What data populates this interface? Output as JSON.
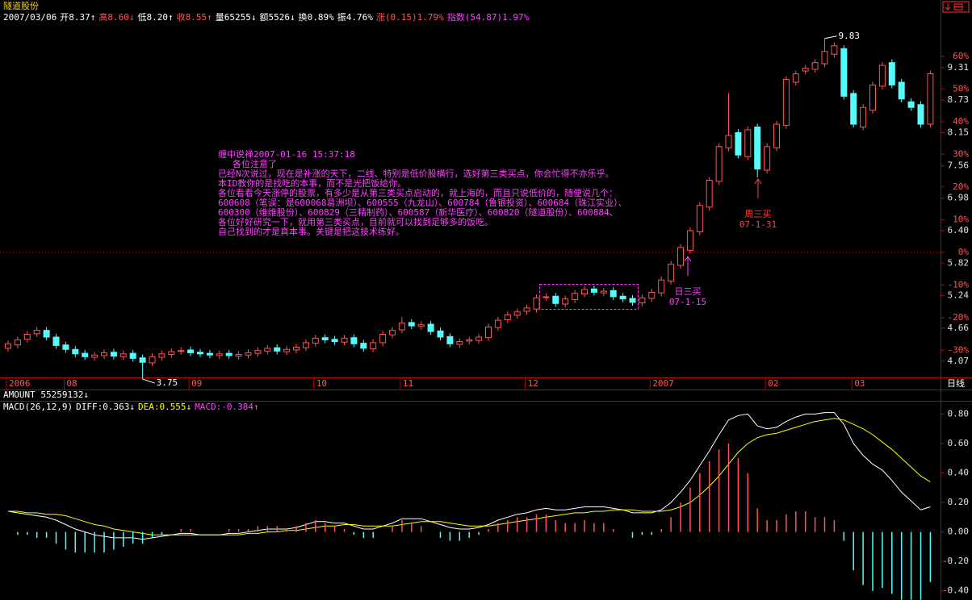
{
  "header": {
    "date": "2007/03/06",
    "quote": [
      {
        "text": "开8.37↑",
        "color": "#ffffff"
      },
      {
        "text": "高8.60↓",
        "color": "#ff5454"
      },
      {
        "text": "低8.20↑",
        "color": "#ffffff"
      },
      {
        "text": "收8.55↑",
        "color": "#ff5454"
      },
      {
        "text": "量65255↓",
        "color": "#ffffff"
      },
      {
        "text": "额5526↓",
        "color": "#ffffff"
      },
      {
        "text": "换0.89%",
        "color": "#ffffff"
      },
      {
        "text": "振4.76%",
        "color": "#ffffff"
      },
      {
        "text": "涨(0.15)1.79%",
        "color": "#ff5454"
      },
      {
        "text": "指数(54.87)1.97%",
        "color": "#ff40ff"
      }
    ]
  },
  "note": {
    "author": "缠中说禅2007-01-16 15:37:18",
    "greeting": "各位注意了",
    "lines": [
      "已经N次说过，现在是补涨的天下，二线、特别是低价股横行，选好第三类买点，你会忙得不亦乐乎。",
      "本ID教你的是找吃的本事，而不是光把饭给你。",
      "各位看看今天涨停的股票，有多少是从第三类买点启动的，就上海的，而且只说低价的，随便说几个：",
      "600608（笔误：是600068葛洲坝）、600555（九龙山）、600784（鲁银投资）、600684（珠江实业）、",
      "600300（维维股份）、600829（三精制药）、600587（新华医疗）、600820（隧道股份）、600884、",
      "各位好好研究一下，就用第三类买点，目前就可以找到足够多的饭吃。",
      "自己找到的才是真本事。关键是把这技术练好。"
    ]
  },
  "chart_data": [
    {
      "type": "candlestick",
      "title": "隧道股份",
      "period": "日线",
      "categories": [
        "2006",
        null,
        null,
        null,
        null,
        null,
        "08",
        null,
        null,
        null,
        null,
        null,
        null,
        null,
        null,
        null,
        null,
        null,
        null,
        "09",
        null,
        null,
        null,
        null,
        null,
        null,
        null,
        null,
        null,
        null,
        null,
        null,
        "10",
        null,
        null,
        null,
        null,
        null,
        null,
        null,
        null,
        "11",
        null,
        null,
        null,
        null,
        null,
        null,
        null,
        null,
        null,
        null,
        null,
        null,
        "12",
        null,
        null,
        null,
        null,
        null,
        null,
        null,
        null,
        null,
        null,
        null,
        null,
        "2007",
        null,
        null,
        null,
        null,
        null,
        null,
        null,
        null,
        null,
        null,
        null,
        "02",
        null,
        null,
        null,
        null,
        null,
        null,
        null,
        null,
        "03",
        null,
        null,
        null,
        null,
        null,
        null,
        null,
        null
      ],
      "open": [
        4.3,
        4.36,
        4.46,
        4.56,
        4.62,
        4.5,
        4.36,
        4.28,
        4.21,
        4.14,
        4.17,
        4.23,
        4.15,
        4.21,
        4.13,
        4.04,
        4.14,
        4.19,
        4.25,
        4.27,
        4.23,
        4.21,
        4.17,
        4.21,
        4.16,
        4.18,
        4.21,
        4.25,
        4.31,
        4.24,
        4.27,
        4.31,
        4.39,
        4.49,
        4.46,
        4.41,
        4.49,
        4.39,
        4.29,
        4.4,
        4.54,
        4.63,
        4.76,
        4.69,
        4.73,
        4.61,
        4.51,
        4.37,
        4.43,
        4.44,
        4.49,
        4.67,
        4.81,
        4.89,
        4.96,
        5.0,
        5.21,
        5.23,
        5.09,
        5.17,
        5.27,
        5.36,
        5.29,
        5.33,
        5.23,
        5.19,
        5.11,
        5.19,
        5.29,
        5.5,
        5.78,
        6.05,
        6.38,
        6.82,
        7.28,
        7.88,
        8.15,
        7.72,
        8.25,
        7.48,
        7.88,
        8.28,
        9.05,
        9.25,
        9.28,
        9.38,
        9.55,
        9.65,
        8.85,
        8.25,
        8.55,
        8.98,
        9.4,
        9.05,
        8.7,
        8.65,
        8.3
      ],
      "high": [
        4.44,
        4.51,
        4.61,
        4.68,
        4.68,
        4.56,
        4.42,
        4.34,
        4.27,
        4.24,
        4.28,
        4.29,
        4.26,
        4.27,
        4.19,
        4.21,
        4.26,
        4.3,
        4.32,
        4.33,
        4.29,
        4.27,
        4.26,
        4.27,
        4.25,
        4.28,
        4.32,
        4.36,
        4.37,
        4.34,
        4.38,
        4.46,
        4.54,
        4.55,
        4.52,
        4.54,
        4.55,
        4.45,
        4.46,
        4.61,
        4.68,
        4.86,
        4.82,
        4.78,
        4.79,
        4.67,
        4.57,
        4.48,
        4.51,
        4.56,
        4.74,
        4.86,
        4.96,
        5.01,
        5.08,
        5.26,
        5.28,
        5.29,
        5.24,
        5.34,
        5.41,
        5.42,
        5.38,
        5.39,
        5.29,
        5.25,
        5.26,
        5.36,
        5.58,
        5.86,
        6.16,
        6.46,
        6.91,
        7.36,
        7.96,
        8.86,
        8.21,
        8.26,
        8.31,
        7.96,
        8.36,
        9.16,
        9.26,
        9.36,
        9.46,
        9.83,
        9.76,
        9.71,
        8.91,
        8.66,
        9.06,
        9.41,
        9.46,
        9.11,
        8.76,
        8.71,
        9.26
      ],
      "low": [
        4.24,
        4.3,
        4.4,
        4.5,
        4.44,
        4.29,
        4.22,
        4.14,
        4.09,
        4.08,
        4.11,
        4.1,
        4.09,
        4.06,
        3.75,
        3.98,
        4.08,
        4.13,
        4.19,
        4.16,
        4.14,
        4.12,
        4.11,
        4.11,
        4.1,
        4.12,
        4.15,
        4.19,
        4.19,
        4.18,
        4.21,
        4.25,
        4.33,
        4.39,
        4.36,
        4.35,
        4.32,
        4.24,
        4.23,
        4.34,
        4.48,
        4.57,
        4.64,
        4.63,
        4.54,
        4.44,
        4.32,
        4.31,
        4.37,
        4.38,
        4.43,
        4.61,
        4.75,
        4.83,
        4.9,
        4.94,
        5.15,
        5.04,
        5.03,
        5.11,
        5.21,
        5.24,
        5.23,
        5.16,
        5.12,
        5.06,
        5.05,
        5.13,
        5.23,
        5.44,
        5.72,
        5.99,
        6.32,
        6.76,
        7.22,
        7.82,
        7.69,
        7.66,
        7.35,
        7.42,
        7.82,
        8.22,
        8.99,
        9.19,
        9.22,
        9.32,
        9.49,
        8.74,
        8.24,
        8.19,
        8.49,
        8.92,
        8.94,
        8.69,
        8.54,
        8.24,
        8.24
      ],
      "close": [
        4.38,
        4.45,
        4.55,
        4.62,
        4.5,
        4.35,
        4.28,
        4.2,
        4.15,
        4.18,
        4.22,
        4.16,
        4.2,
        4.12,
        4.05,
        4.15,
        4.2,
        4.24,
        4.26,
        4.22,
        4.2,
        4.18,
        4.2,
        4.17,
        4.19,
        4.22,
        4.26,
        4.3,
        4.25,
        4.28,
        4.32,
        4.4,
        4.48,
        4.45,
        4.42,
        4.48,
        4.38,
        4.3,
        4.4,
        4.55,
        4.62,
        4.75,
        4.7,
        4.72,
        4.6,
        4.5,
        4.38,
        4.42,
        4.45,
        4.5,
        4.68,
        4.8,
        4.9,
        4.95,
        5.02,
        5.2,
        5.22,
        5.1,
        5.18,
        5.28,
        5.35,
        5.3,
        5.32,
        5.22,
        5.18,
        5.12,
        5.2,
        5.3,
        5.52,
        5.8,
        6.1,
        6.4,
        6.85,
        7.3,
        7.9,
        8.1,
        7.75,
        8.2,
        7.5,
        7.9,
        8.3,
        9.1,
        9.2,
        9.3,
        9.4,
        9.6,
        9.7,
        8.8,
        8.3,
        8.6,
        9.0,
        9.35,
        9.0,
        8.75,
        8.6,
        8.3,
        9.2
      ],
      "up_color": "#ff5454",
      "down_color": "#54fcfc",
      "ylim": [
        3.78,
        10.23
      ],
      "yticks": [
        9.31,
        8.73,
        8.15,
        7.56,
        6.98,
        {
          "value": 6.4,
          "label": "6.40"
        },
        5.82,
        5.24,
        4.66,
        4.07
      ],
      "y2lim": [
        -38.3,
        72.3
      ],
      "y2ticks": [
        {
          "value": 60,
          "label": "60%"
        },
        {
          "value": 50,
          "label": "50%"
        },
        {
          "value": 40,
          "label": "40%"
        },
        {
          "value": 30,
          "label": "30%"
        },
        {
          "value": 20,
          "label": "20%"
        },
        {
          "value": 10,
          "label": "10%"
        },
        {
          "value": 0,
          "label": "0%"
        },
        {
          "value": -10,
          "label": "-10%"
        },
        {
          "value": -20,
          "label": "-20%"
        },
        {
          "value": -30,
          "label": "-30%"
        }
      ],
      "annotations": [
        {
          "label": "日三买",
          "date": "07-1-15",
          "color": "#ff40ff"
        },
        {
          "label": "周三买",
          "date": "07-1-31",
          "color": "#ff4040"
        }
      ]
    },
    {
      "type": "macd",
      "title": "MACD(26,12,9)",
      "subtitle": "AMOUNT 55259132↓",
      "series": [
        {
          "name": "DIFF:0.363↓",
          "color": "#ffffff",
          "values": [
            0.14,
            0.13,
            0.12,
            0.11,
            0.1,
            0.08,
            0.05,
            0.02,
            0.0,
            -0.02,
            -0.03,
            -0.04,
            -0.04,
            -0.04,
            -0.05,
            -0.04,
            -0.03,
            -0.02,
            -0.01,
            -0.01,
            -0.02,
            -0.02,
            -0.02,
            -0.01,
            -0.01,
            0.0,
            0.01,
            0.02,
            0.02,
            0.02,
            0.03,
            0.05,
            0.07,
            0.07,
            0.06,
            0.06,
            0.04,
            0.02,
            0.02,
            0.04,
            0.06,
            0.09,
            0.09,
            0.09,
            0.07,
            0.05,
            0.03,
            0.02,
            0.02,
            0.03,
            0.05,
            0.08,
            0.1,
            0.12,
            0.13,
            0.15,
            0.16,
            0.15,
            0.15,
            0.16,
            0.17,
            0.17,
            0.17,
            0.16,
            0.15,
            0.13,
            0.13,
            0.13,
            0.15,
            0.2,
            0.27,
            0.35,
            0.45,
            0.55,
            0.66,
            0.76,
            0.79,
            0.8,
            0.72,
            0.7,
            0.71,
            0.75,
            0.78,
            0.8,
            0.8,
            0.81,
            0.81,
            0.73,
            0.6,
            0.52,
            0.46,
            0.42,
            0.35,
            0.27,
            0.21,
            0.15,
            0.17
          ]
        },
        {
          "name": "DEA:0.555↓",
          "color": "#ffff00",
          "values": [
            0.14,
            0.14,
            0.13,
            0.13,
            0.12,
            0.12,
            0.11,
            0.09,
            0.07,
            0.05,
            0.04,
            0.02,
            0.01,
            0.0,
            -0.01,
            -0.02,
            -0.02,
            -0.02,
            -0.02,
            -0.02,
            -0.02,
            -0.02,
            -0.02,
            -0.02,
            -0.02,
            -0.01,
            -0.01,
            0.0,
            0.0,
            0.01,
            0.01,
            0.02,
            0.03,
            0.04,
            0.04,
            0.05,
            0.05,
            0.04,
            0.04,
            0.04,
            0.04,
            0.05,
            0.06,
            0.07,
            0.07,
            0.07,
            0.06,
            0.05,
            0.04,
            0.04,
            0.04,
            0.05,
            0.06,
            0.07,
            0.08,
            0.09,
            0.1,
            0.11,
            0.12,
            0.13,
            0.13,
            0.14,
            0.14,
            0.15,
            0.15,
            0.15,
            0.14,
            0.14,
            0.14,
            0.15,
            0.17,
            0.2,
            0.25,
            0.31,
            0.38,
            0.46,
            0.54,
            0.6,
            0.64,
            0.66,
            0.67,
            0.69,
            0.71,
            0.73,
            0.75,
            0.76,
            0.77,
            0.76,
            0.73,
            0.7,
            0.66,
            0.61,
            0.56,
            0.5,
            0.44,
            0.38,
            0.34
          ]
        },
        {
          "name": "MACD:-0.384↑",
          "color": "#ff40ff",
          "up_color": "#ff5454",
          "down_color": "#54fcfc",
          "values": [
            0,
            -0.02,
            -0.02,
            -0.04,
            -0.04,
            -0.08,
            -0.12,
            -0.14,
            -0.14,
            -0.14,
            -0.14,
            -0.12,
            -0.1,
            -0.08,
            -0.08,
            -0.04,
            -0.02,
            0,
            0.02,
            0.02,
            0,
            0,
            0,
            0.02,
            0.02,
            0.02,
            0.04,
            0.04,
            0.04,
            0.02,
            0.04,
            0.06,
            0.08,
            0.06,
            0.04,
            0.02,
            -0.02,
            -0.04,
            -0.04,
            0,
            0.04,
            0.08,
            0.06,
            0.04,
            0,
            -0.04,
            -0.06,
            -0.06,
            -0.04,
            -0.02,
            0.02,
            0.06,
            0.08,
            0.1,
            0.1,
            0.12,
            0.12,
            0.08,
            0.06,
            0.06,
            0.08,
            0.06,
            0.06,
            0.02,
            0,
            -0.04,
            -0.02,
            -0.02,
            0.02,
            0.1,
            0.2,
            0.3,
            0.4,
            0.48,
            0.56,
            0.6,
            0.5,
            0.4,
            0.16,
            0.08,
            0.08,
            0.12,
            0.14,
            0.14,
            0.1,
            0.1,
            0.08,
            -0.06,
            -0.26,
            -0.36,
            -0.4,
            -0.38,
            -0.42,
            -0.46,
            -0.46,
            -0.46,
            -0.34
          ]
        }
      ],
      "ylim": [
        -0.44,
        0.89
      ],
      "yticks": [
        {
          "value": 0.8,
          "label": "0.80"
        },
        {
          "value": 0.6,
          "label": "0.60"
        },
        {
          "value": 0.4,
          "label": "0.40"
        },
        {
          "value": 0.2,
          "label": "0.20"
        },
        {
          "value": 0,
          "label": "0.00"
        },
        {
          "value": -0.2,
          "label": "-0.20"
        },
        {
          "value": -0.4,
          "label": "-0.40"
        }
      ]
    }
  ]
}
